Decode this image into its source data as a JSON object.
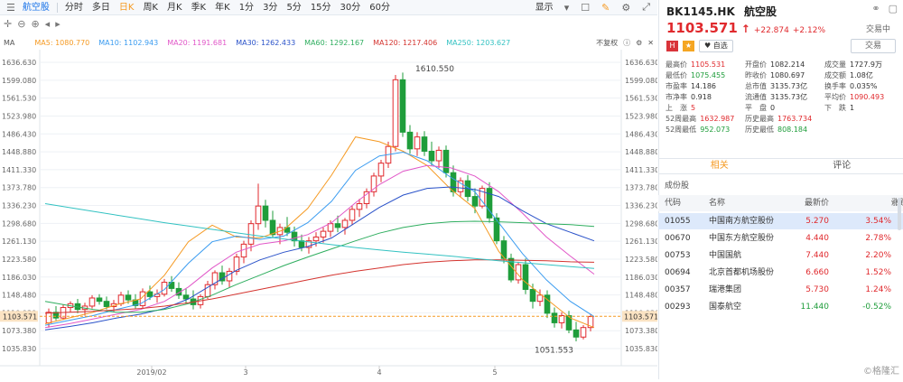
{
  "toolbar": {
    "items": [
      "航空股",
      "分时",
      "多日",
      "日K",
      "周K",
      "月K",
      "季K",
      "年K",
      "1分",
      "3分",
      "5分",
      "15分",
      "30分",
      "60分"
    ],
    "active_index": 3,
    "display_label": "显示"
  },
  "ma": {
    "title": "MA",
    "items": [
      {
        "label": "MA5: 1080.770",
        "color": "#f59a23"
      },
      {
        "label": "MA10: 1102.943",
        "color": "#3b9cf0"
      },
      {
        "label": "MA20: 1191.681",
        "color": "#e157c8"
      },
      {
        "label": "MA30: 1262.433",
        "color": "#2a52c9"
      },
      {
        "label": "MA60: 1292.167",
        "color": "#2fae5f"
      },
      {
        "label": "MA120: 1217.406",
        "color": "#d4342f"
      },
      {
        "label": "MA250: 1203.627",
        "color": "#33c2c2"
      }
    ],
    "adjust_label": "不复权"
  },
  "chart_data": {
    "type": "candlestick",
    "y_ticks": [
      "1636.630",
      "1599.080",
      "1561.530",
      "1523.980",
      "1486.430",
      "1448.880",
      "1411.330",
      "1373.780",
      "1336.230",
      "1298.680",
      "1261.130",
      "1223.580",
      "1186.030",
      "1148.480",
      "1110.930",
      "1073.380",
      "1035.830"
    ],
    "ylim": [
      1035.83,
      1636.63
    ],
    "x_labels": [
      "2019/02",
      "3",
      "4",
      "5"
    ],
    "current_price_label": "1103.571",
    "high_annotation": "1610.550",
    "low_annotation": "1051.553",
    "up_color": "#e0292d",
    "down_color": "#1f9d3b",
    "candles": [
      [
        1090,
        1120,
        1080,
        1112
      ],
      [
        1112,
        1125,
        1095,
        1100
      ],
      [
        1100,
        1128,
        1096,
        1122
      ],
      [
        1122,
        1135,
        1112,
        1130
      ],
      [
        1130,
        1140,
        1110,
        1118
      ],
      [
        1118,
        1132,
        1105,
        1125
      ],
      [
        1125,
        1148,
        1120,
        1142
      ],
      [
        1142,
        1150,
        1128,
        1135
      ],
      [
        1135,
        1145,
        1118,
        1124
      ],
      [
        1124,
        1138,
        1112,
        1130
      ],
      [
        1130,
        1155,
        1125,
        1148
      ],
      [
        1148,
        1158,
        1130,
        1138
      ],
      [
        1138,
        1150,
        1120,
        1126
      ],
      [
        1126,
        1162,
        1120,
        1155
      ],
      [
        1155,
        1168,
        1138,
        1145
      ],
      [
        1145,
        1160,
        1132,
        1150
      ],
      [
        1150,
        1182,
        1145,
        1175
      ],
      [
        1175,
        1188,
        1155,
        1162
      ],
      [
        1162,
        1175,
        1140,
        1148
      ],
      [
        1148,
        1162,
        1130,
        1140
      ],
      [
        1140,
        1158,
        1118,
        1128
      ],
      [
        1128,
        1150,
        1120,
        1145
      ],
      [
        1145,
        1178,
        1140,
        1170
      ],
      [
        1170,
        1200,
        1160,
        1195
      ],
      [
        1195,
        1210,
        1170,
        1178
      ],
      [
        1178,
        1205,
        1165,
        1198
      ],
      [
        1198,
        1235,
        1190,
        1228
      ],
      [
        1228,
        1262,
        1215,
        1255
      ],
      [
        1255,
        1305,
        1240,
        1298
      ],
      [
        1298,
        1382,
        1285,
        1335
      ],
      [
        1335,
        1348,
        1290,
        1305
      ],
      [
        1305,
        1325,
        1268,
        1275
      ],
      [
        1275,
        1298,
        1255,
        1290
      ],
      [
        1290,
        1312,
        1272,
        1280
      ],
      [
        1280,
        1292,
        1250,
        1262
      ],
      [
        1262,
        1275,
        1240,
        1248
      ],
      [
        1248,
        1270,
        1235,
        1262
      ],
      [
        1262,
        1280,
        1250,
        1270
      ],
      [
        1270,
        1290,
        1258,
        1282
      ],
      [
        1282,
        1305,
        1270,
        1298
      ],
      [
        1298,
        1315,
        1280,
        1290
      ],
      [
        1290,
        1310,
        1275,
        1305
      ],
      [
        1305,
        1335,
        1295,
        1328
      ],
      [
        1328,
        1350,
        1312,
        1340
      ],
      [
        1340,
        1372,
        1330,
        1365
      ],
      [
        1365,
        1405,
        1355,
        1398
      ],
      [
        1398,
        1432,
        1385,
        1425
      ],
      [
        1425,
        1470,
        1415,
        1460
      ],
      [
        1460,
        1610,
        1450,
        1600
      ],
      [
        1600,
        1615,
        1480,
        1490
      ],
      [
        1490,
        1505,
        1445,
        1455
      ],
      [
        1455,
        1490,
        1440,
        1480
      ],
      [
        1480,
        1492,
        1440,
        1450
      ],
      [
        1450,
        1470,
        1420,
        1430
      ],
      [
        1430,
        1460,
        1415,
        1452
      ],
      [
        1452,
        1462,
        1395,
        1405
      ],
      [
        1405,
        1420,
        1355,
        1365
      ],
      [
        1365,
        1395,
        1355,
        1388
      ],
      [
        1388,
        1400,
        1345,
        1355
      ],
      [
        1355,
        1372,
        1320,
        1335
      ],
      [
        1335,
        1378,
        1330,
        1372
      ],
      [
        1372,
        1385,
        1300,
        1310
      ],
      [
        1310,
        1320,
        1255,
        1262
      ],
      [
        1262,
        1272,
        1215,
        1225
      ],
      [
        1225,
        1235,
        1175,
        1180
      ],
      [
        1180,
        1218,
        1172,
        1212
      ],
      [
        1212,
        1225,
        1150,
        1160
      ],
      [
        1160,
        1172,
        1120,
        1135
      ],
      [
        1135,
        1160,
        1125,
        1148
      ],
      [
        1148,
        1158,
        1100,
        1110
      ],
      [
        1110,
        1122,
        1080,
        1090
      ],
      [
        1090,
        1112,
        1078,
        1105
      ],
      [
        1105,
        1115,
        1068,
        1075
      ],
      [
        1075,
        1092,
        1051,
        1060
      ],
      [
        1060,
        1085,
        1055,
        1080
      ],
      [
        1080,
        1108,
        1072,
        1103
      ]
    ],
    "ma_series": [
      {
        "name": "MA5",
        "color": "#f59a23",
        "values": [
          1088,
          1100,
          1112,
          1128,
          1140,
          1190,
          1260,
          1295,
          1270,
          1268,
          1285,
          1330,
          1400,
          1480,
          1470,
          1450,
          1420,
          1370,
          1330,
          1240,
          1180,
          1140,
          1100,
          1080
        ]
      },
      {
        "name": "MA10",
        "color": "#3b9cf0",
        "values": [
          1085,
          1095,
          1105,
          1118,
          1130,
          1160,
          1215,
          1260,
          1272,
          1265,
          1272,
          1300,
          1345,
          1410,
          1440,
          1448,
          1430,
          1395,
          1365,
          1300,
          1235,
          1180,
          1135,
          1103
        ]
      },
      {
        "name": "MA20",
        "color": "#e157c8",
        "values": [
          1080,
          1088,
          1098,
          1108,
          1118,
          1135,
          1165,
          1205,
          1238,
          1255,
          1262,
          1275,
          1300,
          1342,
          1380,
          1408,
          1420,
          1415,
          1398,
          1365,
          1320,
          1270,
          1230,
          1192
        ]
      },
      {
        "name": "MA30",
        "color": "#2a52c9",
        "values": [
          1075,
          1082,
          1090,
          1100,
          1108,
          1120,
          1140,
          1170,
          1200,
          1222,
          1238,
          1250,
          1268,
          1300,
          1332,
          1358,
          1372,
          1375,
          1370,
          1355,
          1325,
          1298,
          1280,
          1262
        ]
      },
      {
        "name": "MA60",
        "color": "#2fae5f",
        "values": [
          1135,
          1126,
          1118,
          1112,
          1112,
          1118,
          1130,
          1148,
          1170,
          1190,
          1210,
          1228,
          1245,
          1262,
          1278,
          1290,
          1298,
          1302,
          1303,
          1302,
          1300,
          1298,
          1296,
          1292
        ]
      },
      {
        "name": "MA120",
        "color": "#d4342f",
        "values": [
          1110,
          1112,
          1114,
          1117,
          1120,
          1125,
          1132,
          1140,
          1150,
          1160,
          1170,
          1180,
          1190,
          1198,
          1205,
          1212,
          1217,
          1220,
          1222,
          1222,
          1221,
          1220,
          1218,
          1217
        ]
      },
      {
        "name": "MA250",
        "color": "#33c2c2",
        "values": [
          1340,
          1332,
          1324,
          1316,
          1308,
          1300,
          1293,
          1286,
          1279,
          1272,
          1266,
          1260,
          1254,
          1248,
          1243,
          1238,
          1234,
          1230,
          1225,
          1220,
          1216,
          1212,
          1208,
          1204
        ]
      }
    ]
  },
  "quote": {
    "code": "BK1145.HK",
    "name": "航空股",
    "price": "1103.571",
    "change": "+22.874",
    "change_pct": "+2.12%",
    "status": "交易中",
    "tag_hk": "H",
    "tag_star": "★",
    "watch_label": "自选",
    "trade_label": "交易"
  },
  "stats": [
    [
      {
        "k": "最高价",
        "v": "1105.531",
        "c": "red"
      },
      {
        "k": "开盘价",
        "v": "1082.214",
        "c": ""
      },
      {
        "k": "成交量",
        "v": "1727.9万",
        "c": ""
      }
    ],
    [
      {
        "k": "最低价",
        "v": "1075.455",
        "c": "green"
      },
      {
        "k": "昨收价",
        "v": "1080.697",
        "c": ""
      },
      {
        "k": "成交额",
        "v": "1.08亿",
        "c": ""
      }
    ],
    [
      {
        "k": "市盈率",
        "v": "14.186",
        "c": ""
      },
      {
        "k": "总市值",
        "v": "3135.73亿",
        "c": ""
      },
      {
        "k": "换手率",
        "v": "0.035%",
        "c": ""
      }
    ],
    [
      {
        "k": "市净率",
        "v": "0.918",
        "c": ""
      },
      {
        "k": "流通值",
        "v": "3135.73亿",
        "c": ""
      },
      {
        "k": "平均价",
        "v": "1090.493",
        "c": "red"
      }
    ],
    [
      {
        "k": "上　涨",
        "v": "5",
        "c": "red"
      },
      {
        "k": "平　盘",
        "v": "0",
        "c": ""
      },
      {
        "k": "下　跌",
        "v": "1",
        "c": ""
      }
    ],
    [
      {
        "k": "52周最高",
        "v": "1632.987",
        "c": "red"
      },
      {
        "k": "历史最高",
        "v": "1763.734",
        "c": "red"
      }
    ],
    [
      {
        "k": "52周最低",
        "v": "952.073",
        "c": "green"
      },
      {
        "k": "历史最低",
        "v": "808.184",
        "c": "green"
      }
    ]
  ],
  "tabs": [
    "相关",
    "评论"
  ],
  "section_label": "成份股",
  "table": {
    "headers": [
      "代码",
      "名称",
      "最新价",
      "涨跌幅"
    ],
    "rows": [
      {
        "code": "01055",
        "name": "中国南方航空股份",
        "price": "5.270",
        "chg": "3.54%",
        "up": true
      },
      {
        "code": "00670",
        "name": "中国东方航空股份",
        "price": "4.440",
        "chg": "2.78%",
        "up": true
      },
      {
        "code": "00753",
        "name": "中国国航",
        "price": "7.440",
        "chg": "2.20%",
        "up": true
      },
      {
        "code": "00694",
        "name": "北京首都机场股份",
        "price": "6.660",
        "chg": "1.52%",
        "up": true
      },
      {
        "code": "00357",
        "name": "瑞港集团",
        "price": "5.730",
        "chg": "1.24%",
        "up": true
      },
      {
        "code": "00293",
        "name": "国泰航空",
        "price": "11.440",
        "chg": "-0.52%",
        "up": false
      }
    ]
  },
  "watermark": "©格隆汇"
}
